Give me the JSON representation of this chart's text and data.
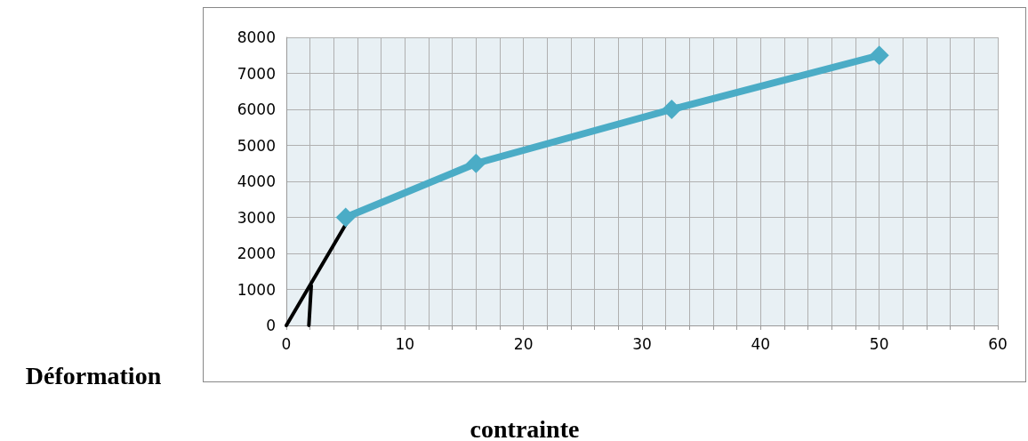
{
  "chart_data": {
    "type": "line",
    "annotations": [
      "Déformation",
      "contrainte"
    ],
    "xlim": [
      0,
      60
    ],
    "ylim": [
      0,
      8000
    ],
    "xticks": [
      0,
      {
        "value": 2,
        "label": null
      },
      {
        "value": 4,
        "label": null
      },
      {
        "value": 6,
        "label": null
      },
      {
        "value": 8,
        "label": null
      },
      10,
      {
        "value": 12,
        "label": null
      },
      {
        "value": 14,
        "label": null
      },
      {
        "value": 16,
        "label": null
      },
      {
        "value": 18,
        "label": null
      },
      20,
      {
        "value": 22,
        "label": null
      },
      {
        "value": 24,
        "label": null
      },
      {
        "value": 26,
        "label": null
      },
      {
        "value": 28,
        "label": null
      },
      30,
      {
        "value": 32,
        "label": null
      },
      {
        "value": 34,
        "label": null
      },
      {
        "value": 36,
        "label": null
      },
      {
        "value": 38,
        "label": null
      },
      40,
      {
        "value": 42,
        "label": null
      },
      {
        "value": 44,
        "label": null
      },
      {
        "value": 46,
        "label": null
      },
      {
        "value": 48,
        "label": null
      },
      50,
      {
        "value": 52,
        "label": null
      },
      {
        "value": 54,
        "label": null
      },
      {
        "value": 56,
        "label": null
      },
      {
        "value": 58,
        "label": null
      },
      60
    ],
    "yticks": [
      0,
      1000,
      2000,
      3000,
      4000,
      5000,
      6000,
      7000,
      8000
    ],
    "grid": true,
    "series": [
      {
        "color": "#4bacc6",
        "marker": "diamond",
        "x": [
          5,
          16,
          32.5,
          50
        ],
        "values": [
          3000,
          4500,
          6000,
          7500
        ]
      },
      {
        "type": "line",
        "color": "#000000",
        "marker": "none",
        "x": [
          0,
          5
        ],
        "values": [
          0,
          2800
        ]
      },
      {
        "type": "line",
        "color": "#000000",
        "marker": "none",
        "x": [
          1.9,
          2.1
        ],
        "values": [
          0,
          1100
        ]
      }
    ]
  }
}
